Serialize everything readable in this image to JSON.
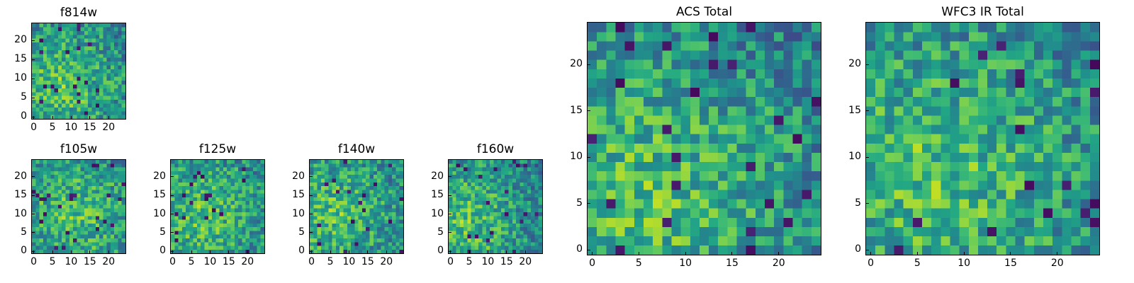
{
  "chart_data": [
    {
      "type": "heatmap",
      "title": "f814w",
      "grid_size": [
        25,
        25
      ],
      "xticks": [
        0,
        5,
        10,
        15,
        20
      ],
      "yticks": [
        0,
        5,
        10,
        15,
        20
      ],
      "xlim": [
        0,
        24
      ],
      "ylim": [
        0,
        24
      ],
      "colormap": "viridis",
      "seed": 11,
      "bright_center": [
        7,
        8
      ]
    },
    {
      "type": "heatmap",
      "title": "f105w",
      "grid_size": [
        25,
        25
      ],
      "xticks": [
        0,
        5,
        10,
        15,
        20
      ],
      "yticks": [
        0,
        5,
        10,
        15,
        20
      ],
      "xlim": [
        0,
        24
      ],
      "ylim": [
        0,
        24
      ],
      "colormap": "viridis",
      "seed": 23,
      "bright_center": [
        11,
        10
      ]
    },
    {
      "type": "heatmap",
      "title": "f125w",
      "grid_size": [
        25,
        25
      ],
      "xticks": [
        0,
        5,
        10,
        15,
        20
      ],
      "yticks": [
        0,
        5,
        10,
        15,
        20
      ],
      "xlim": [
        0,
        24
      ],
      "ylim": [
        0,
        24
      ],
      "colormap": "viridis",
      "seed": 37,
      "bright_center": [
        8,
        10
      ]
    },
    {
      "type": "heatmap",
      "title": "f140w",
      "grid_size": [
        25,
        25
      ],
      "xticks": [
        0,
        5,
        10,
        15,
        20
      ],
      "yticks": [
        0,
        5,
        10,
        15,
        20
      ],
      "xlim": [
        0,
        24
      ],
      "ylim": [
        0,
        24
      ],
      "colormap": "viridis",
      "seed": 41,
      "bright_center": [
        6,
        10
      ]
    },
    {
      "type": "heatmap",
      "title": "f160w",
      "grid_size": [
        25,
        25
      ],
      "xticks": [
        0,
        5,
        10,
        15,
        20
      ],
      "yticks": [
        0,
        5,
        10,
        15,
        20
      ],
      "xlim": [
        0,
        24
      ],
      "ylim": [
        0,
        24
      ],
      "colormap": "viridis",
      "seed": 53,
      "bright_center": [
        4,
        8
      ]
    },
    {
      "type": "heatmap",
      "title": "ACS Total",
      "grid_size": [
        25,
        25
      ],
      "xticks": [
        0,
        5,
        10,
        15,
        20
      ],
      "yticks": [
        0,
        5,
        10,
        15,
        20
      ],
      "xlim": [
        0,
        24
      ],
      "ylim": [
        0,
        24
      ],
      "colormap": "viridis",
      "seed": 67,
      "bright_center": [
        6,
        6
      ]
    },
    {
      "type": "heatmap",
      "title": "WFC3 IR Total",
      "grid_size": [
        25,
        25
      ],
      "xticks": [
        0,
        5,
        10,
        15,
        20
      ],
      "yticks": [
        0,
        5,
        10,
        15,
        20
      ],
      "xlim": [
        0,
        24
      ],
      "ylim": [
        0,
        24
      ],
      "colormap": "viridis",
      "seed": 79,
      "bright_center": [
        7,
        8
      ]
    }
  ]
}
